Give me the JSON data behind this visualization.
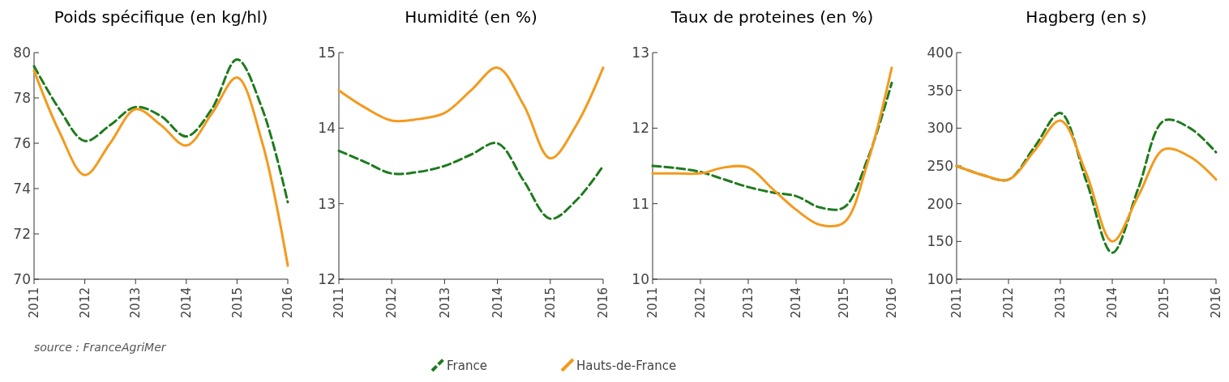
{
  "chart_data": [
    {
      "type": "line",
      "title": "Poids spécifique (en kg/hl)",
      "x": [
        2011,
        2011.5,
        2012,
        2012.5,
        2013,
        2013.5,
        2014,
        2014.5,
        2015,
        2015.5,
        2016
      ],
      "xlim": [
        2011,
        2016
      ],
      "xticks": [
        2011,
        2012,
        2013,
        2014,
        2015,
        2016
      ],
      "ylim": [
        70,
        80
      ],
      "yticks": [
        70,
        72,
        74,
        76,
        78,
        80
      ],
      "grid": false,
      "annotations": [
        "source : FranceAgriMer"
      ],
      "series": [
        {
          "color": "#1e7b1e",
          "line_style": "dashed",
          "values": [
            79.4,
            77.5,
            76.1,
            76.8,
            77.6,
            77.2,
            76.3,
            77.5,
            79.7,
            77.5,
            73.4
          ]
        },
        {
          "color": "#f39a1e",
          "line_style": "solid",
          "values": [
            79.2,
            76.5,
            74.6,
            76.0,
            77.5,
            76.8,
            75.9,
            77.3,
            78.9,
            76.0,
            70.6
          ]
        }
      ]
    },
    {
      "type": "line",
      "title": "Humidité (en %)",
      "x": [
        2011,
        2011.5,
        2012,
        2012.5,
        2013,
        2013.5,
        2014,
        2014.5,
        2015,
        2015.5,
        2016
      ],
      "xlim": [
        2011,
        2016
      ],
      "xticks": [
        2011,
        2012,
        2013,
        2014,
        2015,
        2016
      ],
      "ylim": [
        12,
        15
      ],
      "yticks": [
        12,
        13,
        14,
        15
      ],
      "grid": false,
      "legend": "bottom",
      "series": [
        {
          "name": "France",
          "color": "#1e7b1e",
          "line_style": "dashed",
          "values": [
            13.7,
            13.55,
            13.4,
            13.42,
            13.5,
            13.65,
            13.8,
            13.3,
            12.8,
            13.05,
            13.5
          ]
        },
        {
          "name": "Hauts-de-France",
          "color": "#f39a1e",
          "line_style": "solid",
          "values": [
            14.5,
            14.27,
            14.1,
            14.12,
            14.2,
            14.5,
            14.8,
            14.3,
            13.6,
            14.05,
            14.8
          ]
        }
      ]
    },
    {
      "type": "line",
      "title": "Taux de proteines (en %)",
      "x": [
        2011,
        2011.5,
        2012,
        2012.5,
        2013,
        2013.5,
        2014,
        2014.5,
        2015,
        2015.5,
        2016
      ],
      "xlim": [
        2011,
        2016
      ],
      "xticks": [
        2011,
        2012,
        2013,
        2014,
        2015,
        2016
      ],
      "ylim": [
        10,
        13
      ],
      "yticks": [
        10,
        11,
        12,
        13
      ],
      "grid": false,
      "series": [
        {
          "color": "#1e7b1e",
          "line_style": "dashed",
          "values": [
            11.5,
            11.47,
            11.42,
            11.32,
            11.22,
            11.15,
            11.1,
            10.95,
            10.95,
            11.6,
            12.6
          ]
        },
        {
          "color": "#f39a1e",
          "line_style": "solid",
          "values": [
            11.4,
            11.4,
            11.4,
            11.48,
            11.48,
            11.2,
            10.92,
            10.72,
            10.75,
            11.55,
            12.8
          ]
        }
      ]
    },
    {
      "type": "line",
      "title": "Hagberg (en s)",
      "x": [
        2011,
        2011.5,
        2012,
        2012.5,
        2013,
        2013.5,
        2014,
        2014.5,
        2015,
        2015.5,
        2016
      ],
      "xlim": [
        2011,
        2016
      ],
      "xticks": [
        2011,
        2012,
        2013,
        2014,
        2015,
        2016
      ],
      "ylim": [
        100,
        400
      ],
      "yticks": [
        100,
        150,
        200,
        250,
        300,
        350,
        400
      ],
      "grid": false,
      "series": [
        {
          "color": "#1e7b1e",
          "line_style": "dashed",
          "values": [
            250,
            238,
            232,
            275,
            320,
            230,
            135,
            220,
            310,
            300,
            268
          ]
        },
        {
          "color": "#f39a1e",
          "line_style": "solid",
          "values": [
            250,
            238,
            232,
            270,
            310,
            240,
            150,
            210,
            272,
            262,
            232
          ]
        }
      ]
    }
  ]
}
